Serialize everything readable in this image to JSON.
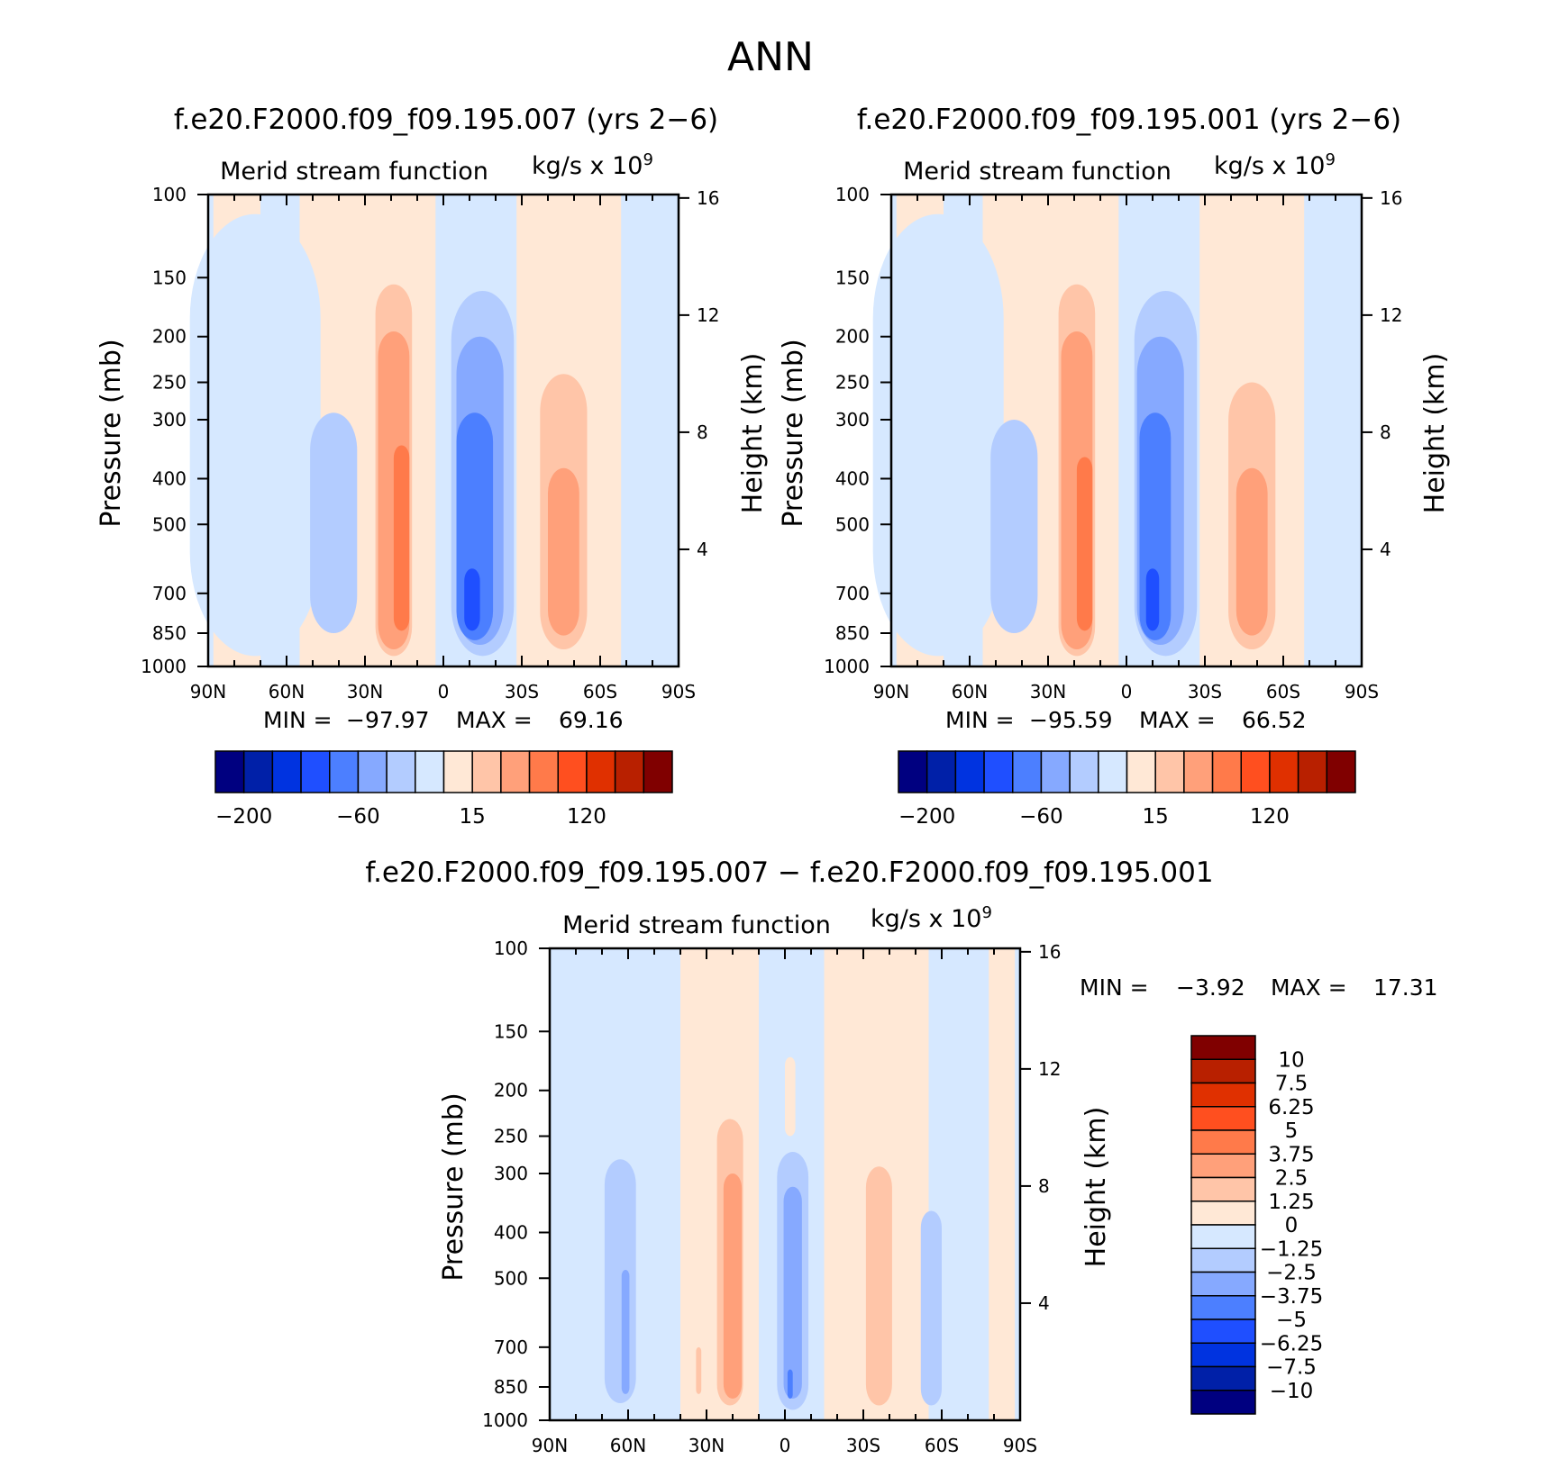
{
  "page_title": "ANN",
  "chart_data": [
    {
      "id": "panel-007",
      "type": "contour",
      "title": "f.e20.F2000.f09_f09.195.007 (yrs 2−6)",
      "variable": "Merid stream function",
      "units": "kg/s x 10",
      "units_exponent": "9",
      "ylabel": "Pressure (mb)",
      "ylabel_right": "Height (km)",
      "pressure_ticks": [
        "100",
        "150",
        "200",
        "250",
        "300",
        "400",
        "500",
        "700",
        "850",
        "1000"
      ],
      "height_ticks": [
        "16",
        "12",
        "8",
        "4"
      ],
      "lat_ticks": [
        "90N",
        "60N",
        "30N",
        "0",
        "30S",
        "60S",
        "90S"
      ],
      "min_label": "MIN =",
      "min_value": "−97.97",
      "max_label": "MAX =",
      "max_value": "69.16",
      "colorbar_labels": [
        "−200",
        "−60",
        "15",
        "120"
      ],
      "cells": [
        {
          "lat": 72,
          "p_top": 110,
          "p_bot": 950,
          "w": 50,
          "level": "neg1",
          "shape": "column"
        },
        {
          "lat": 42,
          "p_top": 290,
          "p_bot": 850,
          "w": 18,
          "level": "neg2",
          "shape": "column"
        },
        {
          "lat": -15,
          "p_top": 160,
          "p_bot": 950,
          "w": 24,
          "level": "neg2",
          "shape": "column"
        },
        {
          "lat": -14,
          "p_top": 200,
          "p_bot": 900,
          "w": 18,
          "level": "neg3",
          "shape": "column"
        },
        {
          "lat": -12,
          "p_top": 290,
          "p_bot": 880,
          "w": 14,
          "level": "neg4",
          "shape": "column"
        },
        {
          "lat": -11,
          "p_top": 620,
          "p_bot": 840,
          "w": 6,
          "level": "neg5",
          "shape": "column"
        },
        {
          "lat": 19,
          "p_top": 155,
          "p_bot": 950,
          "w": 14,
          "level": "pos2",
          "shape": "column"
        },
        {
          "lat": 19,
          "p_top": 195,
          "p_bot": 920,
          "w": 12,
          "level": "pos3",
          "shape": "column"
        },
        {
          "lat": 16,
          "p_top": 340,
          "p_bot": 840,
          "w": 6,
          "level": "pos4",
          "shape": "column"
        },
        {
          "lat": -46,
          "p_top": 240,
          "p_bot": 920,
          "w": 18,
          "level": "pos2",
          "shape": "column"
        },
        {
          "lat": -46,
          "p_top": 380,
          "p_bot": 860,
          "w": 12,
          "level": "pos3",
          "shape": "column"
        }
      ]
    },
    {
      "id": "panel-001",
      "type": "contour",
      "title": "f.e20.F2000.f09_f09.195.001 (yrs 2−6)",
      "variable": "Merid stream function",
      "units": "kg/s x 10",
      "units_exponent": "9",
      "ylabel": "Pressure (mb)",
      "ylabel_right": "Height (km)",
      "pressure_ticks": [
        "100",
        "150",
        "200",
        "250",
        "300",
        "400",
        "500",
        "700",
        "850",
        "1000"
      ],
      "height_ticks": [
        "16",
        "12",
        "8",
        "4"
      ],
      "lat_ticks": [
        "90N",
        "60N",
        "30N",
        "0",
        "30S",
        "60S",
        "90S"
      ],
      "min_label": "MIN =",
      "min_value": "−95.59",
      "max_label": "MAX =",
      "max_value": "66.52",
      "colorbar_labels": [
        "−200",
        "−60",
        "15",
        "120"
      ],
      "cells": [
        {
          "lat": 72,
          "p_top": 110,
          "p_bot": 950,
          "w": 50,
          "level": "neg1",
          "shape": "column"
        },
        {
          "lat": 43,
          "p_top": 300,
          "p_bot": 850,
          "w": 18,
          "level": "neg2",
          "shape": "column"
        },
        {
          "lat": -15,
          "p_top": 160,
          "p_bot": 950,
          "w": 24,
          "level": "neg2",
          "shape": "column"
        },
        {
          "lat": -13,
          "p_top": 200,
          "p_bot": 900,
          "w": 18,
          "level": "neg3",
          "shape": "column"
        },
        {
          "lat": -11,
          "p_top": 290,
          "p_bot": 880,
          "w": 12,
          "level": "neg4",
          "shape": "column"
        },
        {
          "lat": -10,
          "p_top": 620,
          "p_bot": 840,
          "w": 5,
          "level": "neg5",
          "shape": "column"
        },
        {
          "lat": 19,
          "p_top": 155,
          "p_bot": 950,
          "w": 14,
          "level": "pos2",
          "shape": "column"
        },
        {
          "lat": 19,
          "p_top": 195,
          "p_bot": 920,
          "w": 12,
          "level": "pos3",
          "shape": "column"
        },
        {
          "lat": 16,
          "p_top": 360,
          "p_bot": 840,
          "w": 6,
          "level": "pos4",
          "shape": "column"
        },
        {
          "lat": -48,
          "p_top": 250,
          "p_bot": 920,
          "w": 18,
          "level": "pos2",
          "shape": "column"
        },
        {
          "lat": -48,
          "p_top": 380,
          "p_bot": 860,
          "w": 12,
          "level": "pos3",
          "shape": "column"
        }
      ]
    },
    {
      "id": "panel-diff",
      "type": "contour",
      "title": "f.e20.F2000.f09_f09.195.007 − f.e20.F2000.f09_f09.195.001",
      "variable": "Merid stream function",
      "units": "kg/s x 10",
      "units_exponent": "9",
      "ylabel": "Pressure (mb)",
      "ylabel_right": "Height (km)",
      "pressure_ticks": [
        "100",
        "150",
        "200",
        "250",
        "300",
        "400",
        "500",
        "700",
        "850",
        "1000"
      ],
      "height_ticks": [
        "16",
        "12",
        "8",
        "4"
      ],
      "lat_ticks": [
        "90N",
        "60N",
        "30N",
        "0",
        "30S",
        "60S",
        "90S"
      ],
      "min_label": "MIN =",
      "min_value": "−3.92",
      "max_label": "MAX =",
      "max_value": "17.31",
      "colorbar_labels": [
        "10",
        "7.5",
        "6.25",
        "5",
        "3.75",
        "2.5",
        "1.25",
        "0",
        "−1.25",
        "−2.5",
        "−3.75",
        "−5",
        "−6.25",
        "−7.5",
        "−10"
      ],
      "cells": [
        {
          "lat": 63,
          "p_top": 280,
          "p_bot": 920,
          "w": 12,
          "level": "neg2",
          "shape": "column"
        },
        {
          "lat": 61,
          "p_top": 480,
          "p_bot": 880,
          "w": 3,
          "level": "neg3",
          "shape": "column"
        },
        {
          "lat": 28,
          "p_top": 500,
          "p_bot": 930,
          "w": 10,
          "level": "pos1",
          "shape": "column"
        },
        {
          "lat": 21,
          "p_top": 230,
          "p_bot": 930,
          "w": 10,
          "level": "pos2",
          "shape": "column"
        },
        {
          "lat": 20,
          "p_top": 300,
          "p_bot": 900,
          "w": 7,
          "level": "pos3",
          "shape": "column"
        },
        {
          "lat": 33,
          "p_top": 700,
          "p_bot": 880,
          "w": 2,
          "level": "pos2",
          "shape": "column"
        },
        {
          "lat": -2,
          "p_top": 170,
          "p_bot": 250,
          "w": 4,
          "level": "pos1",
          "shape": "column"
        },
        {
          "lat": -3,
          "p_top": 270,
          "p_bot": 950,
          "w": 12,
          "level": "neg2",
          "shape": "column"
        },
        {
          "lat": -3,
          "p_top": 320,
          "p_bot": 900,
          "w": 7,
          "level": "neg3",
          "shape": "column"
        },
        {
          "lat": -2,
          "p_top": 780,
          "p_bot": 900,
          "w": 2,
          "level": "neg4",
          "shape": "column"
        },
        {
          "lat": -36,
          "p_top": 290,
          "p_bot": 930,
          "w": 10,
          "level": "pos2",
          "shape": "column"
        },
        {
          "lat": -56,
          "p_top": 360,
          "p_bot": 930,
          "w": 8,
          "level": "neg2",
          "shape": "column"
        }
      ]
    }
  ],
  "palette": {
    "main": [
      "#000080",
      "#0020A8",
      "#0033E0",
      "#1F4FFF",
      "#4C7FFF",
      "#86A9FF",
      "#B3CCFF",
      "#D6E8FF",
      "#FFE8D6",
      "#FFC5A8",
      "#FFA07A",
      "#FF7A4A",
      "#FF4F1F",
      "#E03000",
      "#B82000",
      "#800000"
    ],
    "levels": {
      "neg1": "#D6E8FF",
      "neg2": "#B3CCFF",
      "neg3": "#86A9FF",
      "neg4": "#4C7FFF",
      "neg5": "#1F4FFF",
      "pos1": "#FFE8D6",
      "pos2": "#FFC5A8",
      "pos3": "#FFA07A",
      "pos4": "#FF7A4A"
    },
    "background_pos": "#FFE8D6",
    "background_neg": "#D6E8FF"
  }
}
